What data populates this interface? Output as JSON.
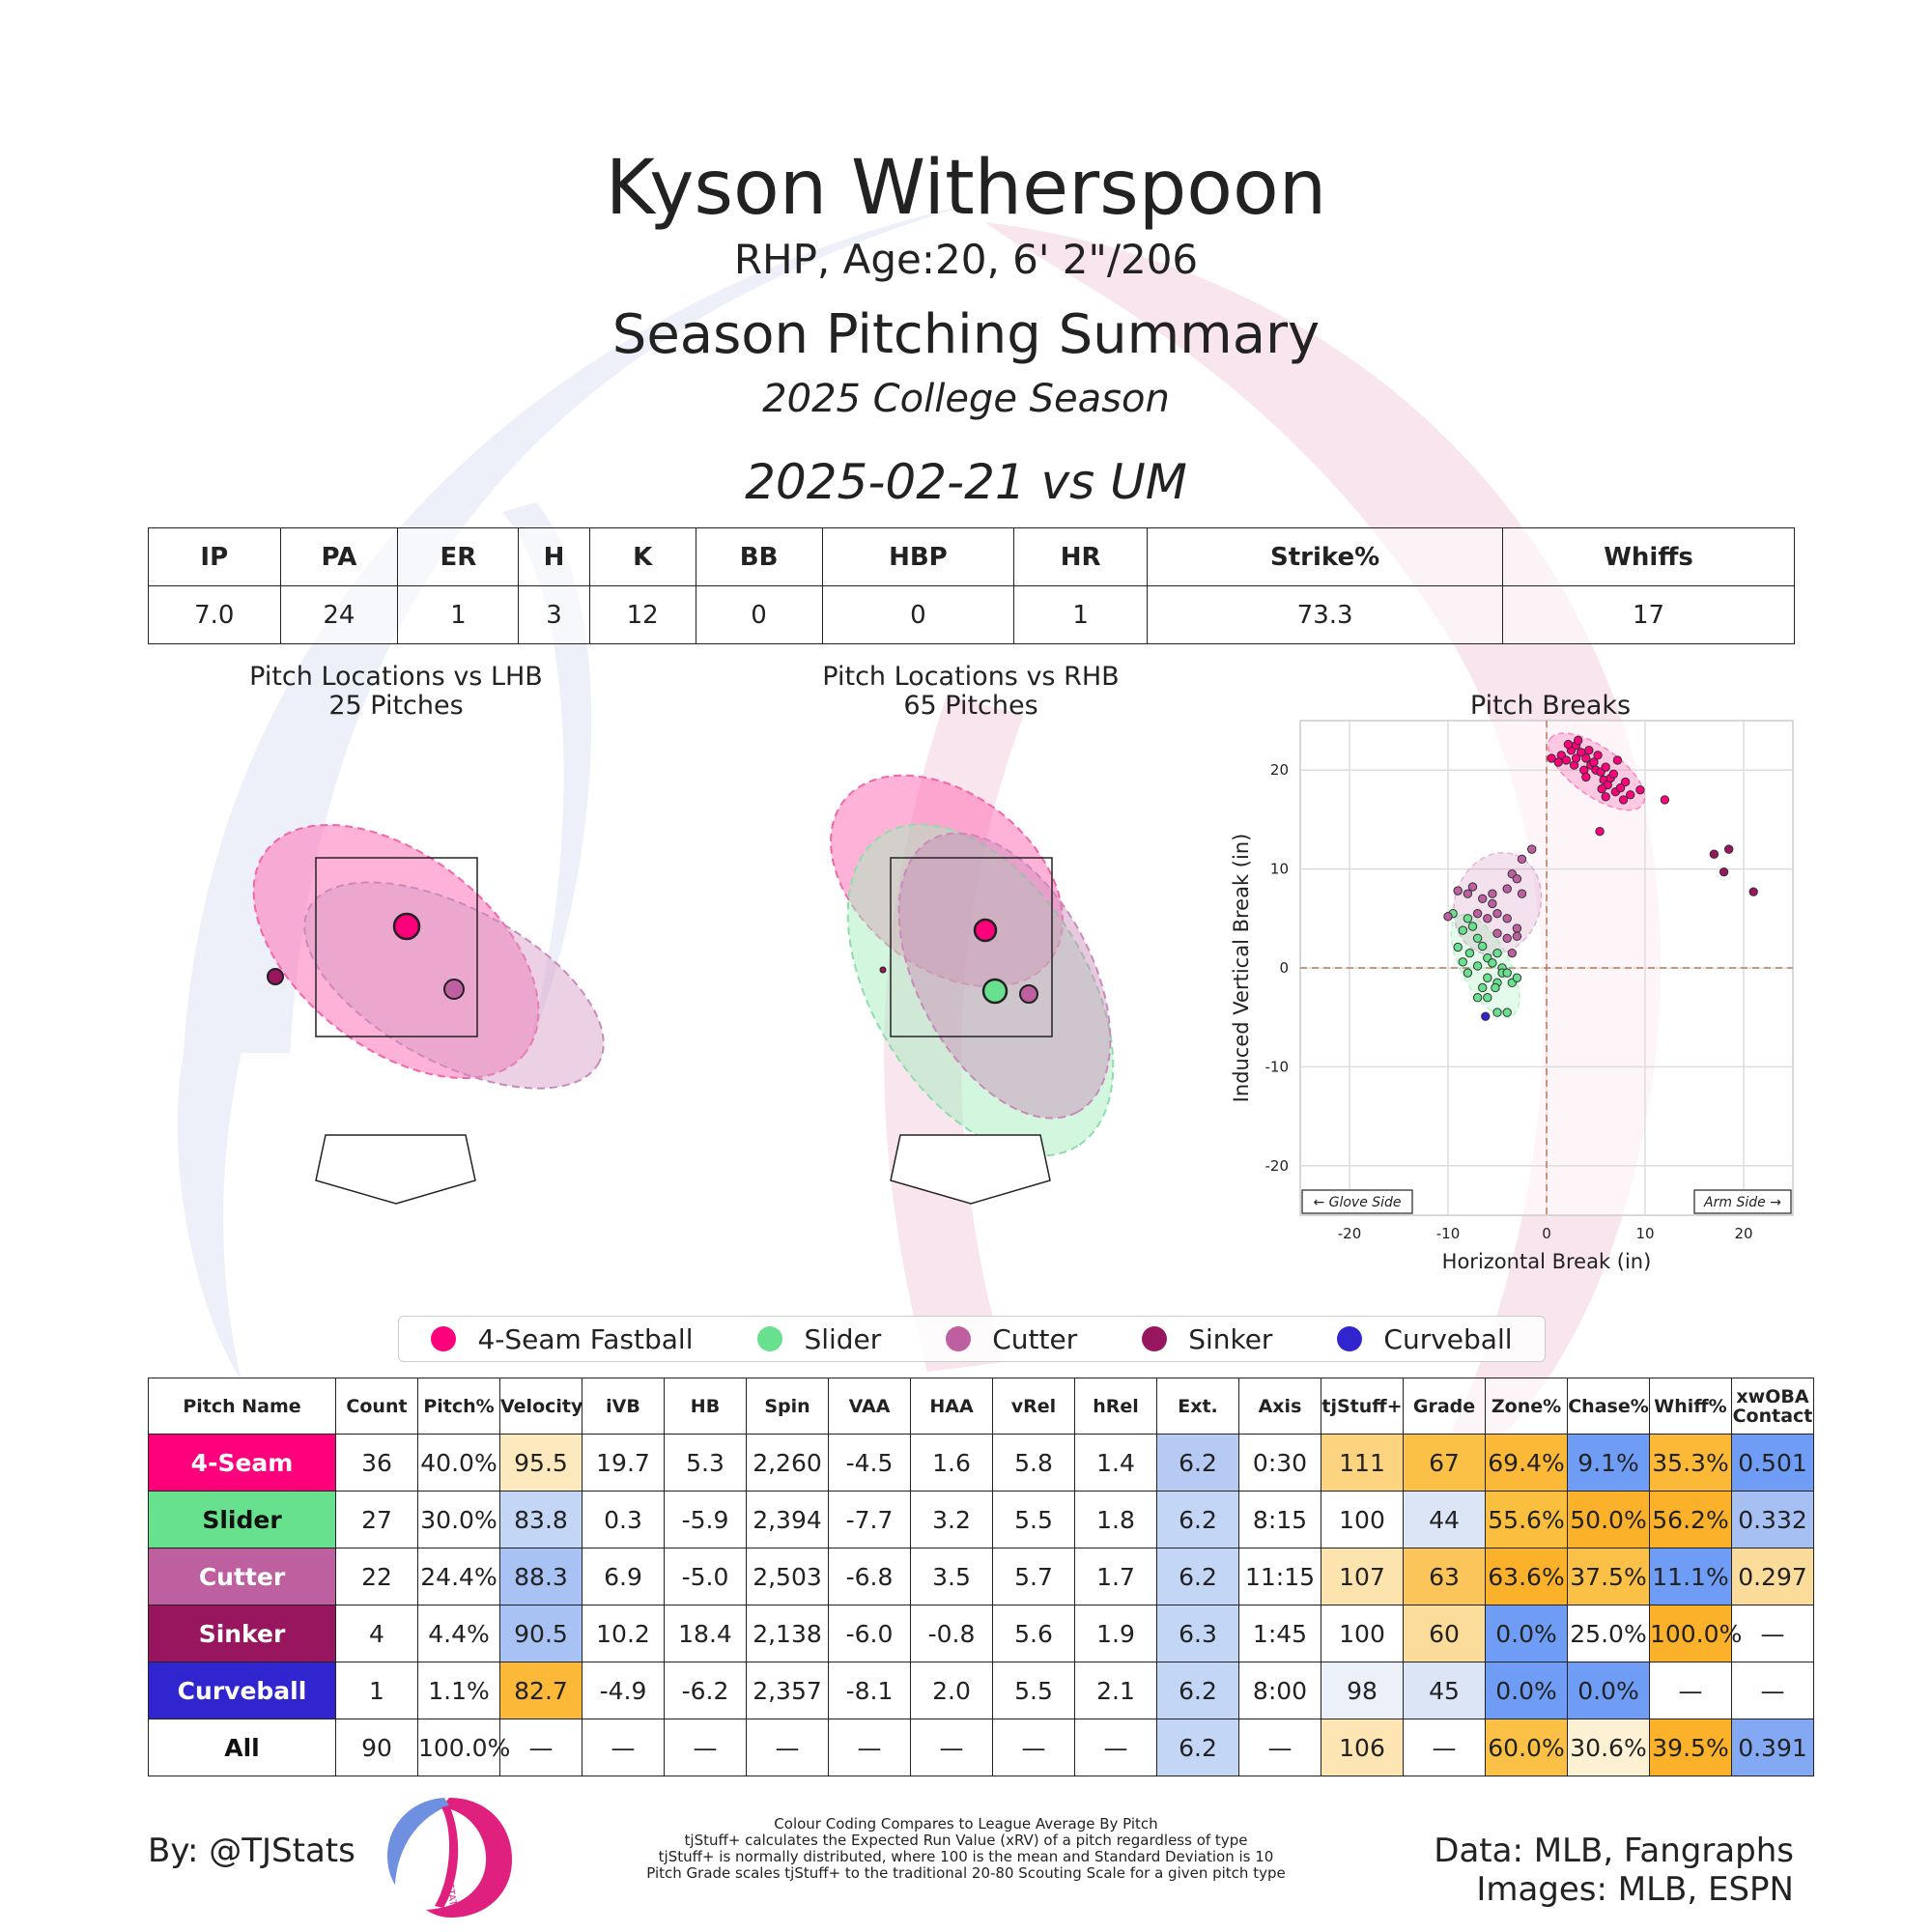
{
  "header": {
    "name": "Kyson Witherspoon",
    "bio": "RHP, Age:20, 6' 2\"/206",
    "title": "Season Pitching Summary",
    "season": "2025 College Season",
    "game": "2025-02-21 vs UM"
  },
  "game_stats": {
    "headers": [
      "IP",
      "PA",
      "ER",
      "H",
      "K",
      "BB",
      "HBP",
      "HR",
      "Strike%",
      "Whiffs"
    ],
    "values": [
      "7.0",
      "24",
      "1",
      "3",
      "12",
      "0",
      "0",
      "1",
      "73.3",
      "17"
    ]
  },
  "panels": {
    "lhb_title": "Pitch Locations vs LHB",
    "lhb_count": "25 Pitches",
    "rhb_title": "Pitch Locations vs RHB",
    "rhb_count": "65 Pitches",
    "breaks_title": "Pitch Breaks"
  },
  "colors": {
    "fastball": "#FF007D",
    "slider": "#67E18D",
    "cutter": "#BE5FA0",
    "sinker": "#98165D",
    "curveball": "#3025CE"
  },
  "legend": [
    {
      "label": "4-Seam Fastball",
      "color": "#FF007D"
    },
    {
      "label": "Slider",
      "color": "#67E18D"
    },
    {
      "label": "Cutter",
      "color": "#BE5FA0"
    },
    {
      "label": "Sinker",
      "color": "#98165D"
    },
    {
      "label": "Curveball",
      "color": "#3025CE"
    }
  ],
  "chart_data": {
    "type": "scatter",
    "title": "Pitch Breaks",
    "xlabel": "Horizontal Break (in)",
    "ylabel": "Induced Vertical Break (in)",
    "xlim": [
      -25,
      25
    ],
    "ylim": [
      -25,
      25
    ],
    "xticks": [
      "-20",
      "-10",
      "0",
      "10",
      "20"
    ],
    "yticks": [
      "20",
      "10",
      "0",
      "-10",
      "-20"
    ],
    "grid": true,
    "annotations": [
      "← Glove Side",
      "Arm Side →"
    ],
    "series": [
      {
        "name": "4-Seam Fastball",
        "color": "#FF007D",
        "points": [
          [
            0.5,
            21.2
          ],
          [
            1.5,
            21.5
          ],
          [
            2,
            21
          ],
          [
            2.5,
            22
          ],
          [
            3,
            22.5
          ],
          [
            3.2,
            23
          ],
          [
            3.5,
            21.8
          ],
          [
            4,
            21.2
          ],
          [
            4.3,
            22
          ],
          [
            4.5,
            20.5
          ],
          [
            5,
            20
          ],
          [
            5.2,
            21.5
          ],
          [
            5.5,
            19.8
          ],
          [
            5.8,
            19
          ],
          [
            6,
            20.3
          ],
          [
            6.2,
            18.5
          ],
          [
            6.5,
            19.2
          ],
          [
            7,
            17.8
          ],
          [
            7.2,
            21
          ],
          [
            7.5,
            18.2
          ],
          [
            8,
            18.8
          ],
          [
            8.5,
            17.5
          ],
          [
            9.5,
            18
          ],
          [
            12,
            17
          ],
          [
            5.4,
            13.8
          ],
          [
            6,
            17.3
          ],
          [
            4.8,
            20.8
          ],
          [
            3.8,
            20
          ],
          [
            2.8,
            20.5
          ],
          [
            6.8,
            19.6
          ],
          [
            1.2,
            20.8
          ],
          [
            3,
            21.2
          ],
          [
            4,
            19.3
          ],
          [
            5.6,
            18.1
          ],
          [
            7.8,
            17
          ],
          [
            2.2,
            22.6
          ]
        ]
      },
      {
        "name": "Slider",
        "color": "#67E18D",
        "points": [
          [
            -9.5,
            5.5
          ],
          [
            -8,
            5
          ],
          [
            -8.5,
            3.8
          ],
          [
            -7.5,
            4.2
          ],
          [
            -7,
            3
          ],
          [
            -6.5,
            2.2
          ],
          [
            -9,
            2.1
          ],
          [
            -7.8,
            1.5
          ],
          [
            -6,
            1
          ],
          [
            -5.5,
            0.5
          ],
          [
            -5,
            1.5
          ],
          [
            -4.5,
            0
          ],
          [
            -4.5,
            -0.5
          ],
          [
            -4,
            -0.5
          ],
          [
            -8,
            -0.5
          ],
          [
            -7,
            0.2
          ],
          [
            -6,
            -1
          ],
          [
            -5,
            -1.5
          ],
          [
            -6.5,
            -2
          ],
          [
            -5.2,
            -2
          ],
          [
            -3.5,
            -1.5
          ],
          [
            -7,
            -3
          ],
          [
            -6,
            -3
          ],
          [
            -5,
            -4.5
          ],
          [
            -4,
            -4.5
          ],
          [
            -3,
            -1
          ],
          [
            -8.5,
            0.6
          ]
        ]
      },
      {
        "name": "Cutter",
        "color": "#BE5FA0",
        "points": [
          [
            -10,
            5.2
          ],
          [
            -9,
            7.8
          ],
          [
            -8,
            7.5
          ],
          [
            -7.5,
            8.2
          ],
          [
            -6.5,
            7
          ],
          [
            -5.5,
            7.5
          ],
          [
            -5.5,
            6.5
          ],
          [
            -4,
            8
          ],
          [
            -3.5,
            9.5
          ],
          [
            -3,
            9
          ],
          [
            -2.5,
            7.5
          ],
          [
            -7,
            5.5
          ],
          [
            -6,
            5
          ],
          [
            -5,
            5.5
          ],
          [
            -4,
            5
          ],
          [
            -3,
            4
          ],
          [
            -5,
            3.5
          ],
          [
            -4,
            3
          ],
          [
            -3.5,
            1.5
          ],
          [
            -3,
            3.2
          ],
          [
            -1.5,
            12
          ],
          [
            -2.5,
            11
          ]
        ]
      },
      {
        "name": "Sinker",
        "color": "#98165D",
        "points": [
          [
            17,
            11.5
          ],
          [
            18.5,
            12
          ],
          [
            18,
            9.7
          ],
          [
            21,
            7.7
          ]
        ]
      },
      {
        "name": "Curveball",
        "color": "#3025CE",
        "points": [
          [
            -6.2,
            -4.9
          ]
        ]
      }
    ]
  },
  "table": {
    "headers": [
      "Pitch Name",
      "Count",
      "Pitch%",
      "Velocity",
      "iVB",
      "HB",
      "Spin",
      "VAA",
      "HAA",
      "vRel",
      "hRel",
      "Ext.",
      "Axis",
      "tjStuff+",
      "Grade",
      "Zone%",
      "Chase%",
      "Whiff%",
      "xwOBA Contact"
    ],
    "rows": [
      {
        "name": "4-Seam",
        "color": "#FF007D",
        "text": "#ffffff",
        "cells": [
          "36",
          "40.0%",
          "95.5",
          "19.7",
          "5.3",
          "2,260",
          "-4.5",
          "1.6",
          "5.8",
          "1.4",
          "6.2",
          "0:30",
          "111",
          "67",
          "69.4%",
          "9.1%",
          "35.3%",
          "0.501"
        ],
        "bg": [
          "",
          "",
          "#FDE9BE",
          "",
          "",
          "",
          "",
          "",
          "",
          "",
          "#B6CAF4",
          "",
          "#FCD480",
          "#FBC147",
          "#FBB937",
          "#6F9DF5",
          "#FBB937",
          "#6F9DF5"
        ]
      },
      {
        "name": "Slider",
        "color": "#67E18D",
        "text": "#111111",
        "cells": [
          "27",
          "30.0%",
          "83.8",
          "0.3",
          "-5.9",
          "2,394",
          "-7.7",
          "3.2",
          "5.5",
          "1.8",
          "6.2",
          "8:15",
          "100",
          "44",
          "55.6%",
          "50.0%",
          "56.2%",
          "0.332"
        ],
        "bg": [
          "",
          "",
          "#C4D6F6",
          "",
          "",
          "",
          "",
          "",
          "",
          "",
          "#C4D6F6",
          "",
          "",
          "#DCE5F5",
          "#FBBF3F",
          "#FBB12A",
          "#FBB12A",
          "#A6C0F4"
        ]
      },
      {
        "name": "Cutter",
        "color": "#BE5FA0",
        "text": "#ffffff",
        "cells": [
          "22",
          "24.4%",
          "88.3",
          "6.9",
          "-5.0",
          "2,503",
          "-6.8",
          "3.5",
          "5.7",
          "1.7",
          "6.2",
          "11:15",
          "107",
          "63",
          "63.6%",
          "37.5%",
          "11.1%",
          "0.297"
        ],
        "bg": [
          "",
          "",
          "#A8C2F4",
          "",
          "",
          "",
          "",
          "",
          "",
          "",
          "#C4D6F6",
          "",
          "#FDE4AE",
          "#FBC55A",
          "#FBB12A",
          "#FBC147",
          "#6F9DF5",
          "#FCDC9A"
        ]
      },
      {
        "name": "Sinker",
        "color": "#98165D",
        "text": "#ffffff",
        "cells": [
          "4",
          "4.4%",
          "90.5",
          "10.2",
          "18.4",
          "2,138",
          "-6.0",
          "-0.8",
          "5.6",
          "1.9",
          "6.3",
          "1:45",
          "100",
          "60",
          "0.0%",
          "25.0%",
          "100.0%",
          "—"
        ],
        "bg": [
          "",
          "",
          "#A8C2F4",
          "",
          "",
          "",
          "",
          "",
          "",
          "",
          "#C4D6F6",
          "",
          "",
          "#FCDC9A",
          "#6F9DF5",
          "",
          "#FBB12A",
          ""
        ]
      },
      {
        "name": "Curveball",
        "color": "#3025CE",
        "text": "#ffffff",
        "cells": [
          "1",
          "1.1%",
          "82.7",
          "-4.9",
          "-6.2",
          "2,357",
          "-8.1",
          "2.0",
          "5.5",
          "2.1",
          "6.2",
          "8:00",
          "98",
          "45",
          "0.0%",
          "0.0%",
          "—",
          "—"
        ],
        "bg": [
          "",
          "",
          "#FBB937",
          "",
          "",
          "",
          "",
          "",
          "",
          "",
          "#C4D6F6",
          "",
          "#EBF0F9",
          "#DCE5F5",
          "#6F9DF5",
          "#6F9DF5",
          "",
          ""
        ]
      },
      {
        "name": "All",
        "color": "#ffffff",
        "text": "#111111",
        "cells": [
          "90",
          "100.0%",
          "—",
          "—",
          "—",
          "—",
          "—",
          "—",
          "—",
          "—",
          "6.2",
          "—",
          "106",
          "—",
          "60.0%",
          "30.6%",
          "39.5%",
          "0.391"
        ],
        "bg": [
          "",
          "",
          "",
          "",
          "",
          "",
          "",
          "",
          "",
          "",
          "#C4D6F6",
          "",
          "#FDE6B4",
          "",
          "#FBC147",
          "#FDF1D4",
          "#FBB12A",
          "#84A9F4"
        ]
      }
    ]
  },
  "footer": {
    "byline": "By: @TJStats",
    "data_source": "Data: MLB, Fangraphs",
    "images_source": "Images: MLB, ESPN",
    "notes": [
      "Colour Coding Compares to League Average By Pitch",
      "tjStuff+ calculates the Expected Run Value (xRV) of a pitch regardless of type",
      "tjStuff+ is normally distributed, where 100 is the mean and Standard Deviation is 10",
      "Pitch Grade scales tjStuff+ to the traditional 20-80 Scouting Scale for a given pitch type"
    ],
    "logo_text": "STATS"
  }
}
